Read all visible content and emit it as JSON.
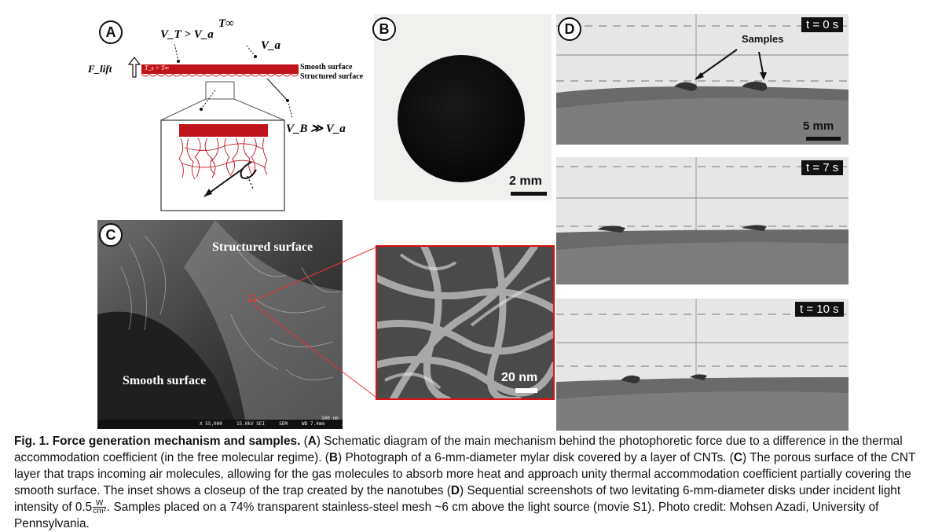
{
  "panels": {
    "A": {
      "label": "A",
      "t_inf": "T∞",
      "vt_gt_va": "V_T > V_a",
      "va": "V_a",
      "f_lift": "F_lift",
      "ts_gt_t": "T_s > T∞",
      "smooth_surface": "Smooth surface",
      "structured_surface": "Structured surface",
      "vb_gg_va": "V_B ≫ V_a"
    },
    "B": {
      "label": "B",
      "scale": "2 mm"
    },
    "C": {
      "label": "C",
      "structured_surface": "Structured surface",
      "smooth_surface": "Smooth surface",
      "inset_scale": "20 nm",
      "sem_info": "X 55,000     15.0kV SEI     SEM     WD 7.4mm",
      "sem_scale": "100 nm"
    },
    "D": {
      "label": "D",
      "samples": "Samples",
      "scale": "5 mm",
      "frames": [
        {
          "time": "t = 0 s"
        },
        {
          "time": "t = 7 s"
        },
        {
          "time": "t = 10 s"
        }
      ]
    }
  },
  "caption": {
    "title": "Fig. 1. Force generation mechanism and samples.",
    "tag_a": "A",
    "text_a": "Schematic diagram of the main mechanism behind the photophoretic force due to a difference in the thermal accommodation coefficient (in the free molecular regime).",
    "tag_b": "B",
    "text_b": "Photograph of a 6-mm-diameter mylar disk covered by a layer of CNTs.",
    "tag_c": "C",
    "text_c": "The porous surface of the CNT layer that traps incoming air molecules, allowing for the gas molecules to absorb more heat and approach unity thermal accommodation coefficient partially covering the smooth surface. The inset shows a closeup of the trap created by the nanotubes",
    "tag_d": "D",
    "text_d1": "Sequential screenshots of two levitating 6-mm-diameter disks under incident light intensity of 0.5",
    "unit_num": "W",
    "unit_den": "cm²",
    "text_d2": ". Samples placed on a 74% transparent stainless-steel mesh ~6 cm above the light source (movie S1). Photo credit: Mohsen Azadi, University of Pennsylvania."
  }
}
